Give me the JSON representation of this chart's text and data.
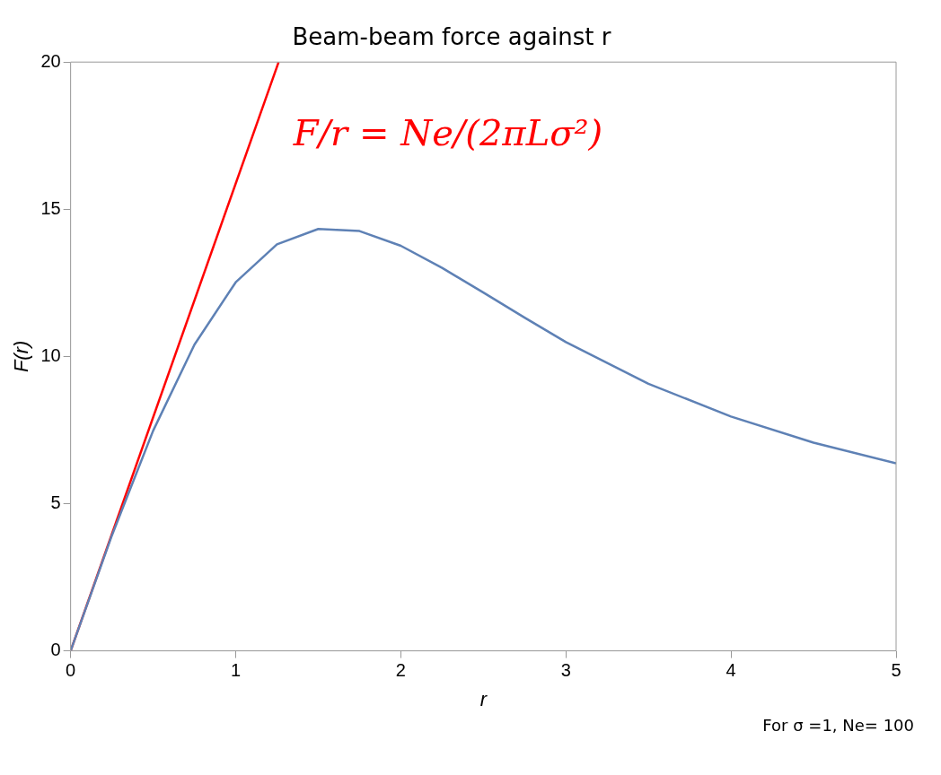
{
  "chart_data": {
    "type": "line",
    "title": "Beam-beam force against r",
    "xlabel": "r",
    "ylabel": "F(r)",
    "xlim": [
      0,
      5
    ],
    "xticks": [
      0,
      1,
      2,
      3,
      4,
      5
    ],
    "ylim": [
      0,
      20
    ],
    "yticks": [
      0,
      5,
      10,
      15,
      20
    ],
    "grid": false,
    "legend": false,
    "marker": "none",
    "series": [
      {
        "color": "#5e81b5",
        "x": [
          0,
          0.25,
          0.5,
          0.75,
          1,
          1.25,
          1.5,
          1.75,
          2,
          2.25,
          2.5,
          2.75,
          3,
          3.5,
          4,
          4.5,
          5
        ],
        "values": [
          0,
          3.92,
          7.48,
          10.4,
          12.52,
          13.81,
          14.33,
          14.26,
          13.76,
          13.01,
          12.17,
          11.32,
          10.49,
          9.07,
          7.96,
          7.07,
          6.37
        ]
      },
      {
        "color": "#ff0000",
        "x": [
          0,
          1.26
        ],
        "values": [
          0,
          20
        ]
      }
    ],
    "annotations": [
      "F/r = Ne/(2πLσ²)",
      "For σ =1, Ne= 100"
    ]
  }
}
